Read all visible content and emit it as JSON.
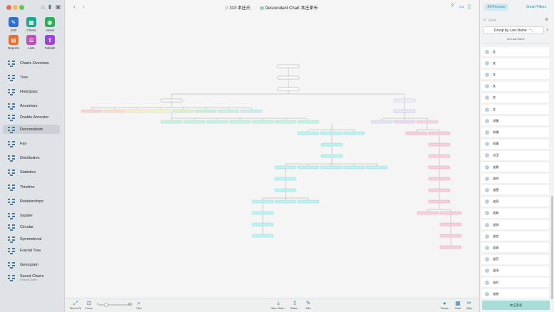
{
  "window": {
    "title": "Descendant Chart 本庄家长",
    "person_count": "313",
    "person_name": "本庄氏"
  },
  "toolbar": [
    {
      "label": "Edit",
      "color": "#2e6fd0",
      "glyph": "✎"
    },
    {
      "label": "Charts",
      "color": "#1aa88f",
      "glyph": "▦"
    },
    {
      "label": "Views",
      "color": "#2bb05a",
      "glyph": "◉"
    },
    {
      "label": "Reports",
      "color": "#e56f2c",
      "glyph": "▤"
    },
    {
      "label": "Lists",
      "color": "#c04fbf",
      "glyph": "☰"
    },
    {
      "label": "Publish",
      "color": "#9b44d8",
      "glyph": "⇪"
    }
  ],
  "nav": [
    {
      "label": "Charts Overview",
      "icon": "grid-icon"
    },
    {
      "label": "Tree",
      "icon": "tree-icon"
    },
    {
      "label": "Hourglass",
      "icon": "hourglass-icon"
    },
    {
      "label": "Ancestors",
      "icon": "ancestors-icon"
    },
    {
      "label": "Double Ancestor",
      "icon": "double-ancestor-icon"
    },
    {
      "label": "Descendants",
      "icon": "descendants-icon",
      "active": true
    },
    {
      "label": "Fan",
      "icon": "fan-icon"
    },
    {
      "label": "Distribution",
      "icon": "distribution-icon"
    },
    {
      "label": "Statistics",
      "icon": "statistics-icon"
    },
    {
      "label": "Timeline",
      "icon": "timeline-icon"
    },
    {
      "label": "Relationships",
      "icon": "relationships-icon"
    },
    {
      "label": "Square",
      "icon": "square-icon"
    },
    {
      "label": "Circular",
      "icon": "circular-icon"
    },
    {
      "label": "Symmetrical",
      "icon": "symmetrical-icon"
    },
    {
      "label": "Fractal Tree",
      "icon": "fractal-icon"
    },
    {
      "label": "Genogram",
      "icon": "genogram-icon"
    },
    {
      "label": "Saved Charts",
      "icon": "saved-charts-icon",
      "sub": "0 Saved Charts"
    }
  ],
  "bottom": {
    "left": [
      {
        "label": "Size to Fit",
        "icon": "size-fit-icon"
      },
      {
        "label": "Focus",
        "icon": "focus-icon"
      },
      {
        "label": "Find",
        "icon": "find-icon"
      }
    ],
    "center": [
      {
        "label": "Save Chart...",
        "icon": "save-icon"
      },
      {
        "label": "Share...",
        "icon": "share-icon"
      },
      {
        "label": "Edit",
        "icon": "edit-icon"
      }
    ],
    "right": [
      {
        "label": "Theme",
        "icon": "theme-icon"
      },
      {
        "label": "Chart",
        "icon": "chart-icon"
      },
      {
        "label": "Style",
        "icon": "style-icon"
      }
    ]
  },
  "panel": {
    "tab_all": "All Persons",
    "tab_smart": "Smart Filters",
    "search_placeholder": "Find",
    "group_label": "Group by Last Name",
    "section": "No Last Name",
    "persons": [
      "女",
      "女",
      "女",
      "女",
      "女",
      "女",
      "常騰",
      "知騰",
      "知騰",
      "吉田",
      "道貫",
      "道明",
      "道堅",
      "道昌",
      "道員",
      "道源",
      "道信",
      "道真",
      "道芳",
      "道清",
      "道村",
      "道徳"
    ],
    "footer": "本庄家長"
  }
}
